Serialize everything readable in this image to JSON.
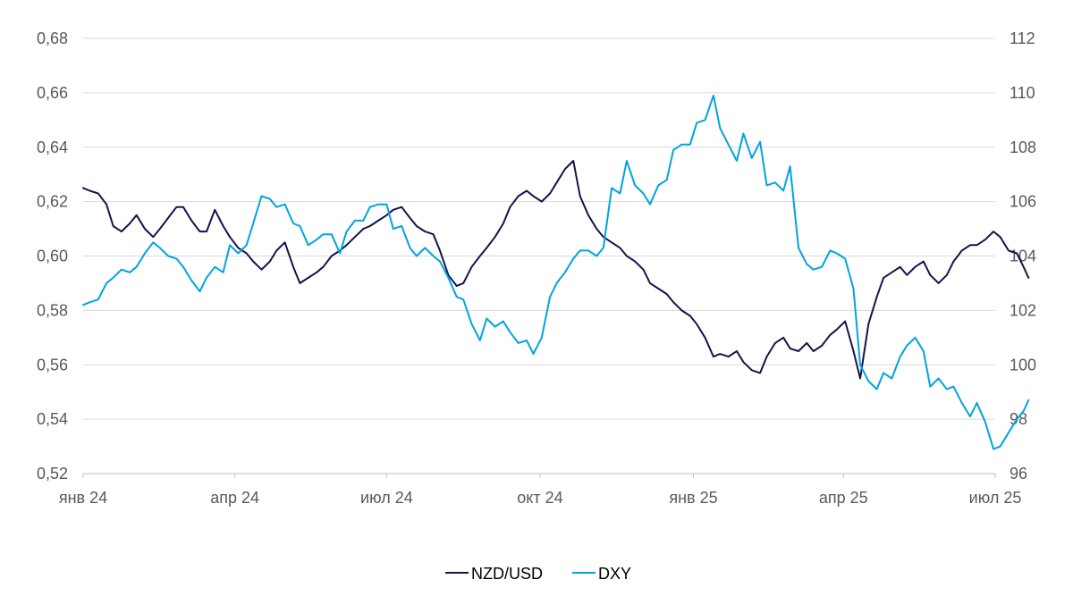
{
  "chart_data": {
    "type": "line",
    "x_tick_labels": [
      "янв 24",
      "апр 24",
      "июл 24",
      "окт 24",
      "янв 25",
      "апр 25",
      "июл 25"
    ],
    "x_ticks": [
      "2024-01",
      "2024-04",
      "2024-07",
      "2024-10",
      "2025-01",
      "2025-04",
      "2025-07"
    ],
    "x_range": [
      "2024-01-01",
      "2025-07-01"
    ],
    "y_left": {
      "ticks": [
        "0,68",
        "0,66",
        "0,64",
        "0,62",
        "0,60",
        "0,58",
        "0,56",
        "0,54",
        "0,52"
      ],
      "ylim": [
        0.52,
        0.68
      ]
    },
    "y_right": {
      "ticks": [
        "112",
        "110",
        "108",
        "106",
        "104",
        "102",
        "100",
        "98",
        "96"
      ],
      "ylim": [
        96,
        112
      ]
    },
    "grid": "horizontal",
    "legend_position": "bottom-center",
    "series": [
      {
        "name": "NZD/USD",
        "axis": "left",
        "color": "#14144b",
        "points": [
          [
            "2024-01-01",
            0.625
          ],
          [
            "2024-01-05",
            0.624
          ],
          [
            "2024-01-10",
            0.623
          ],
          [
            "2024-01-15",
            0.619
          ],
          [
            "2024-01-19",
            0.611
          ],
          [
            "2024-01-24",
            0.609
          ],
          [
            "2024-01-29",
            0.612
          ],
          [
            "2024-02-02",
            0.615
          ],
          [
            "2024-02-07",
            0.61
          ],
          [
            "2024-02-12",
            0.607
          ],
          [
            "2024-02-16",
            0.61
          ],
          [
            "2024-02-21",
            0.614
          ],
          [
            "2024-02-26",
            0.618
          ],
          [
            "2024-03-01",
            0.618
          ],
          [
            "2024-03-06",
            0.613
          ],
          [
            "2024-03-11",
            0.609
          ],
          [
            "2024-03-15",
            0.609
          ],
          [
            "2024-03-20",
            0.617
          ],
          [
            "2024-03-25",
            0.611
          ],
          [
            "2024-03-29",
            0.607
          ],
          [
            "2024-04-03",
            0.603
          ],
          [
            "2024-04-08",
            0.601
          ],
          [
            "2024-04-12",
            0.598
          ],
          [
            "2024-04-17",
            0.595
          ],
          [
            "2024-04-22",
            0.598
          ],
          [
            "2024-04-26",
            0.602
          ],
          [
            "2024-05-01",
            0.605
          ],
          [
            "2024-05-06",
            0.596
          ],
          [
            "2024-05-10",
            0.59
          ],
          [
            "2024-05-15",
            0.592
          ],
          [
            "2024-05-20",
            0.594
          ],
          [
            "2024-05-24",
            0.596
          ],
          [
            "2024-05-29",
            0.6
          ],
          [
            "2024-06-03",
            0.602
          ],
          [
            "2024-06-07",
            0.604
          ],
          [
            "2024-06-12",
            0.607
          ],
          [
            "2024-06-17",
            0.61
          ],
          [
            "2024-06-21",
            0.611
          ],
          [
            "2024-06-26",
            0.613
          ],
          [
            "2024-07-01",
            0.615
          ],
          [
            "2024-07-05",
            0.617
          ],
          [
            "2024-07-10",
            0.618
          ],
          [
            "2024-07-15",
            0.614
          ],
          [
            "2024-07-19",
            0.611
          ],
          [
            "2024-07-24",
            0.609
          ],
          [
            "2024-07-29",
            0.608
          ],
          [
            "2024-08-02",
            0.602
          ],
          [
            "2024-08-07",
            0.593
          ],
          [
            "2024-08-12",
            0.589
          ],
          [
            "2024-08-16",
            0.59
          ],
          [
            "2024-08-21",
            0.596
          ],
          [
            "2024-08-26",
            0.6
          ],
          [
            "2024-08-30",
            0.603
          ],
          [
            "2024-09-04",
            0.607
          ],
          [
            "2024-09-09",
            0.612
          ],
          [
            "2024-09-13",
            0.618
          ],
          [
            "2024-09-18",
            0.622
          ],
          [
            "2024-09-23",
            0.624
          ],
          [
            "2024-09-27",
            0.622
          ],
          [
            "2024-10-02",
            0.62
          ],
          [
            "2024-10-07",
            0.623
          ],
          [
            "2024-10-11",
            0.627
          ],
          [
            "2024-10-16",
            0.632
          ],
          [
            "2024-10-21",
            0.635
          ],
          [
            "2024-10-25",
            0.622
          ],
          [
            "2024-10-30",
            0.615
          ],
          [
            "2024-11-04",
            0.61
          ],
          [
            "2024-11-08",
            0.607
          ],
          [
            "2024-11-13",
            0.605
          ],
          [
            "2024-11-18",
            0.603
          ],
          [
            "2024-11-22",
            0.6
          ],
          [
            "2024-11-27",
            0.598
          ],
          [
            "2024-12-02",
            0.595
          ],
          [
            "2024-12-06",
            0.59
          ],
          [
            "2024-12-11",
            0.588
          ],
          [
            "2024-12-16",
            0.586
          ],
          [
            "2024-12-20",
            0.583
          ],
          [
            "2024-12-25",
            0.58
          ],
          [
            "2024-12-30",
            0.578
          ],
          [
            "2025-01-03",
            0.575
          ],
          [
            "2025-01-08",
            0.57
          ],
          [
            "2025-01-13",
            0.563
          ],
          [
            "2025-01-17",
            0.564
          ],
          [
            "2025-01-22",
            0.563
          ],
          [
            "2025-01-27",
            0.565
          ],
          [
            "2025-01-31",
            0.561
          ],
          [
            "2025-02-05",
            0.558
          ],
          [
            "2025-02-10",
            0.557
          ],
          [
            "2025-02-14",
            0.563
          ],
          [
            "2025-02-19",
            0.568
          ],
          [
            "2025-02-24",
            0.57
          ],
          [
            "2025-02-28",
            0.566
          ],
          [
            "2025-03-05",
            0.565
          ],
          [
            "2025-03-10",
            0.568
          ],
          [
            "2025-03-14",
            0.565
          ],
          [
            "2025-03-19",
            0.567
          ],
          [
            "2025-03-24",
            0.571
          ],
          [
            "2025-03-28",
            0.573
          ],
          [
            "2025-04-02",
            0.576
          ],
          [
            "2025-04-07",
            0.565
          ],
          [
            "2025-04-11",
            0.555
          ],
          [
            "2025-04-16",
            0.575
          ],
          [
            "2025-04-21",
            0.585
          ],
          [
            "2025-04-25",
            0.592
          ],
          [
            "2025-04-30",
            0.594
          ],
          [
            "2025-05-05",
            0.596
          ],
          [
            "2025-05-09",
            0.593
          ],
          [
            "2025-05-14",
            0.596
          ],
          [
            "2025-05-19",
            0.598
          ],
          [
            "2025-05-23",
            0.593
          ],
          [
            "2025-05-28",
            0.59
          ],
          [
            "2025-06-02",
            0.593
          ],
          [
            "2025-06-06",
            0.598
          ],
          [
            "2025-06-11",
            0.602
          ],
          [
            "2025-06-16",
            0.604
          ],
          [
            "2025-06-20",
            0.604
          ],
          [
            "2025-06-25",
            0.606
          ],
          [
            "2025-06-30",
            0.609
          ],
          [
            "2025-07-04",
            0.607
          ],
          [
            "2025-07-09",
            0.602
          ],
          [
            "2025-07-14",
            0.601
          ],
          [
            "2025-07-18",
            0.596
          ],
          [
            "2025-07-21",
            0.592
          ]
        ]
      },
      {
        "name": "DXY",
        "axis": "right",
        "color": "#00a3e0",
        "points": [
          [
            "2024-01-01",
            102.2
          ],
          [
            "2024-01-05",
            102.3
          ],
          [
            "2024-01-10",
            102.4
          ],
          [
            "2024-01-15",
            103.0
          ],
          [
            "2024-01-19",
            103.2
          ],
          [
            "2024-01-24",
            103.5
          ],
          [
            "2024-01-29",
            103.4
          ],
          [
            "2024-02-02",
            103.6
          ],
          [
            "2024-02-07",
            104.1
          ],
          [
            "2024-02-12",
            104.5
          ],
          [
            "2024-02-16",
            104.3
          ],
          [
            "2024-02-21",
            104.0
          ],
          [
            "2024-02-26",
            103.9
          ],
          [
            "2024-03-01",
            103.6
          ],
          [
            "2024-03-06",
            103.1
          ],
          [
            "2024-03-11",
            102.7
          ],
          [
            "2024-03-15",
            103.2
          ],
          [
            "2024-03-20",
            103.6
          ],
          [
            "2024-03-25",
            103.4
          ],
          [
            "2024-03-29",
            104.4
          ],
          [
            "2024-04-03",
            104.1
          ],
          [
            "2024-04-08",
            104.4
          ],
          [
            "2024-04-12",
            105.2
          ],
          [
            "2024-04-17",
            106.2
          ],
          [
            "2024-04-22",
            106.1
          ],
          [
            "2024-04-26",
            105.8
          ],
          [
            "2024-05-01",
            105.9
          ],
          [
            "2024-05-06",
            105.2
          ],
          [
            "2024-05-10",
            105.1
          ],
          [
            "2024-05-15",
            104.4
          ],
          [
            "2024-05-20",
            104.6
          ],
          [
            "2024-05-24",
            104.8
          ],
          [
            "2024-05-29",
            104.8
          ],
          [
            "2024-06-03",
            104.1
          ],
          [
            "2024-06-07",
            104.9
          ],
          [
            "2024-06-12",
            105.3
          ],
          [
            "2024-06-17",
            105.3
          ],
          [
            "2024-06-21",
            105.8
          ],
          [
            "2024-06-26",
            105.9
          ],
          [
            "2024-07-01",
            105.9
          ],
          [
            "2024-07-05",
            105.0
          ],
          [
            "2024-07-10",
            105.1
          ],
          [
            "2024-07-15",
            104.3
          ],
          [
            "2024-07-19",
            104.0
          ],
          [
            "2024-07-24",
            104.3
          ],
          [
            "2024-07-29",
            104.0
          ],
          [
            "2024-08-02",
            103.8
          ],
          [
            "2024-08-07",
            103.2
          ],
          [
            "2024-08-12",
            102.5
          ],
          [
            "2024-08-16",
            102.4
          ],
          [
            "2024-08-21",
            101.5
          ],
          [
            "2024-08-26",
            100.9
          ],
          [
            "2024-08-30",
            101.7
          ],
          [
            "2024-09-04",
            101.4
          ],
          [
            "2024-09-09",
            101.6
          ],
          [
            "2024-09-13",
            101.2
          ],
          [
            "2024-09-18",
            100.8
          ],
          [
            "2024-09-23",
            100.9
          ],
          [
            "2024-09-27",
            100.4
          ],
          [
            "2024-10-02",
            101.0
          ],
          [
            "2024-10-07",
            102.5
          ],
          [
            "2024-10-11",
            103.0
          ],
          [
            "2024-10-16",
            103.4
          ],
          [
            "2024-10-21",
            103.9
          ],
          [
            "2024-10-25",
            104.2
          ],
          [
            "2024-10-30",
            104.2
          ],
          [
            "2024-11-04",
            104.0
          ],
          [
            "2024-11-08",
            104.3
          ],
          [
            "2024-11-13",
            106.5
          ],
          [
            "2024-11-18",
            106.3
          ],
          [
            "2024-11-22",
            107.5
          ],
          [
            "2024-11-27",
            106.6
          ],
          [
            "2024-12-02",
            106.3
          ],
          [
            "2024-12-06",
            105.9
          ],
          [
            "2024-12-11",
            106.6
          ],
          [
            "2024-12-16",
            106.8
          ],
          [
            "2024-12-20",
            107.9
          ],
          [
            "2024-12-25",
            108.1
          ],
          [
            "2024-12-30",
            108.1
          ],
          [
            "2025-01-03",
            108.9
          ],
          [
            "2025-01-08",
            109.0
          ],
          [
            "2025-01-13",
            109.9
          ],
          [
            "2025-01-17",
            108.7
          ],
          [
            "2025-01-22",
            108.1
          ],
          [
            "2025-01-27",
            107.5
          ],
          [
            "2025-01-31",
            108.5
          ],
          [
            "2025-02-05",
            107.6
          ],
          [
            "2025-02-10",
            108.2
          ],
          [
            "2025-02-14",
            106.6
          ],
          [
            "2025-02-19",
            106.7
          ],
          [
            "2025-02-24",
            106.4
          ],
          [
            "2025-02-28",
            107.3
          ],
          [
            "2025-03-05",
            104.3
          ],
          [
            "2025-03-10",
            103.7
          ],
          [
            "2025-03-14",
            103.5
          ],
          [
            "2025-03-19",
            103.6
          ],
          [
            "2025-03-24",
            104.2
          ],
          [
            "2025-03-28",
            104.1
          ],
          [
            "2025-04-02",
            103.9
          ],
          [
            "2025-04-07",
            102.8
          ],
          [
            "2025-04-11",
            100.0
          ],
          [
            "2025-04-16",
            99.4
          ],
          [
            "2025-04-21",
            99.1
          ],
          [
            "2025-04-25",
            99.7
          ],
          [
            "2025-04-30",
            99.5
          ],
          [
            "2025-05-05",
            100.3
          ],
          [
            "2025-05-09",
            100.7
          ],
          [
            "2025-05-14",
            101.0
          ],
          [
            "2025-05-19",
            100.5
          ],
          [
            "2025-05-23",
            99.2
          ],
          [
            "2025-05-28",
            99.5
          ],
          [
            "2025-06-02",
            99.1
          ],
          [
            "2025-06-06",
            99.2
          ],
          [
            "2025-06-11",
            98.6
          ],
          [
            "2025-06-16",
            98.1
          ],
          [
            "2025-06-20",
            98.6
          ],
          [
            "2025-06-25",
            97.9
          ],
          [
            "2025-06-30",
            96.9
          ],
          [
            "2025-07-04",
            97.0
          ],
          [
            "2025-07-09",
            97.5
          ],
          [
            "2025-07-14",
            98.0
          ],
          [
            "2025-07-18",
            98.3
          ],
          [
            "2025-07-21",
            98.7
          ]
        ]
      }
    ]
  }
}
